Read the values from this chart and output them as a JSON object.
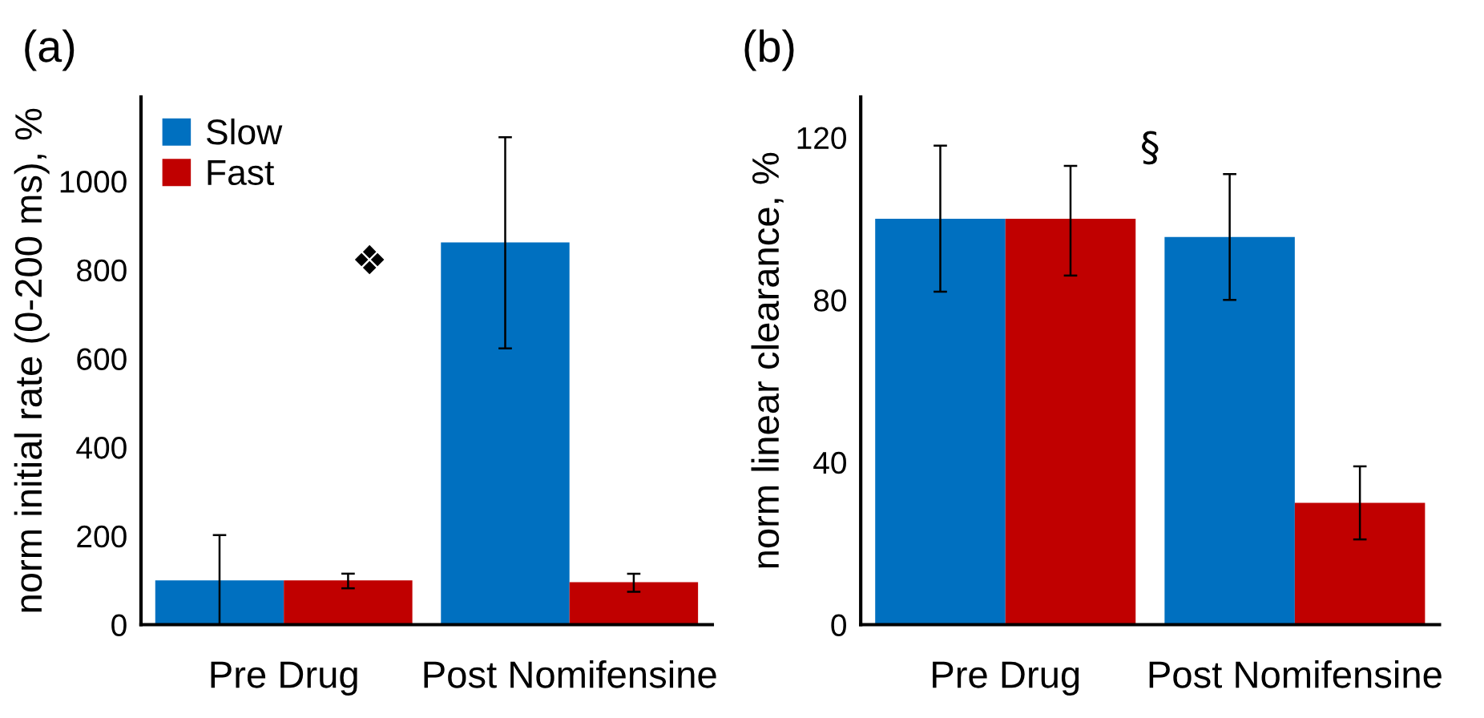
{
  "chart_data": [
    {
      "type": "bar",
      "title": "(a)",
      "ylabel": "norm initial rate (0-200 ms), %",
      "categories": [
        "Pre Drug",
        "Post Nomifensine"
      ],
      "series": [
        {
          "name": "Slow",
          "color": "#0070c0",
          "values": [
            100,
            862
          ],
          "errors": [
            [
              0,
              202
            ],
            [
              623,
              1099
            ]
          ]
        },
        {
          "name": "Fast",
          "color": "#c00000",
          "values": [
            100,
            96
          ],
          "errors": [
            [
              82,
              115
            ],
            [
              74,
              115
            ]
          ]
        }
      ],
      "ylim": [
        0,
        1190
      ],
      "yticks": [
        0,
        200,
        400,
        600,
        800,
        1000
      ],
      "legend": "top left",
      "grid": false,
      "annotations": [
        "❖"
      ]
    },
    {
      "type": "bar",
      "title": "(b)",
      "ylabel": "norm linear clearance, %",
      "categories": [
        "Pre Drug",
        "Post Nomifensine"
      ],
      "series": [
        {
          "color": "#0070c0",
          "values": [
            100,
            95.5
          ],
          "errors": [
            [
              82,
              118
            ],
            [
              80,
              111
            ]
          ]
        },
        {
          "color": "#c00000",
          "values": [
            100,
            30
          ],
          "errors": [
            [
              86,
              113
            ],
            [
              21,
              39
            ]
          ]
        }
      ],
      "ylim": [
        0,
        130
      ],
      "yticks": [
        0,
        40,
        80,
        120
      ],
      "legend": false,
      "grid": false,
      "annotations": [
        "§"
      ]
    }
  ]
}
